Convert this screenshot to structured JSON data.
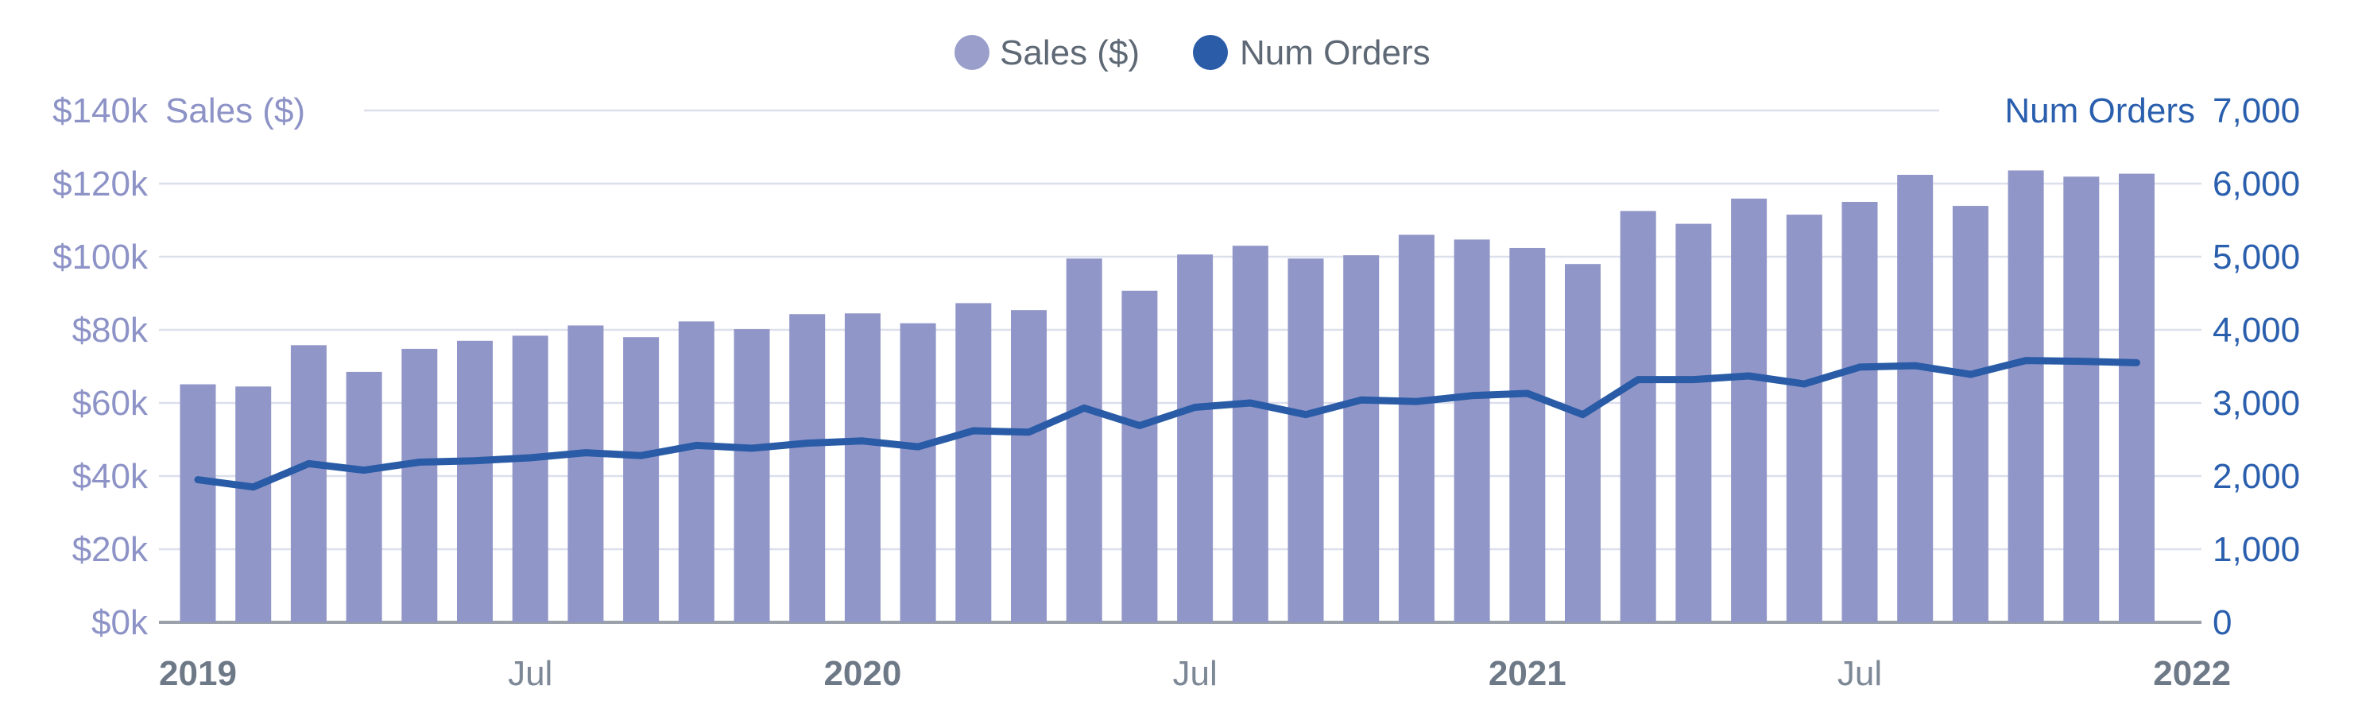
{
  "chart_data": {
    "type": "bar",
    "subtype": "combo-bar-line-dual-axis",
    "categories": [
      "Jan 2019",
      "Feb 2019",
      "Mar 2019",
      "Apr 2019",
      "May 2019",
      "Jun 2019",
      "Jul 2019",
      "Aug 2019",
      "Sep 2019",
      "Oct 2019",
      "Nov 2019",
      "Dec 2019",
      "Jan 2020",
      "Feb 2020",
      "Mar 2020",
      "Apr 2020",
      "May 2020",
      "Jun 2020",
      "Jul 2020",
      "Aug 2020",
      "Sep 2020",
      "Oct 2020",
      "Nov 2020",
      "Dec 2020",
      "Jan 2021",
      "Feb 2021",
      "Mar 2021",
      "Apr 2021",
      "May 2021",
      "Jun 2021",
      "Jul 2021",
      "Aug 2021",
      "Sep 2021",
      "Oct 2021",
      "Nov 2021",
      "Dec 2021"
    ],
    "series": [
      {
        "name": "Sales ($)",
        "type": "bar",
        "axis": "left",
        "color": "#9196c8",
        "values": [
          65100,
          64500,
          75800,
          68500,
          74800,
          77000,
          78400,
          81200,
          78000,
          82300,
          80200,
          84300,
          84500,
          81800,
          87300,
          85400,
          99500,
          90700,
          100600,
          103000,
          99500,
          100400,
          106000,
          104700,
          102400,
          98000,
          112500,
          109000,
          115900,
          111500,
          115000,
          122400,
          113900,
          123600,
          121900,
          122700
        ]
      },
      {
        "name": "Num Orders",
        "type": "line",
        "axis": "right",
        "color": "#2a5ba6",
        "values": [
          1950,
          1850,
          2170,
          2080,
          2190,
          2210,
          2250,
          2320,
          2280,
          2420,
          2380,
          2450,
          2480,
          2400,
          2620,
          2600,
          2930,
          2690,
          2940,
          3000,
          2840,
          3040,
          3020,
          3100,
          3130,
          2840,
          3320,
          3320,
          3370,
          3260,
          3490,
          3510,
          3390,
          3580,
          3570,
          3550
        ]
      }
    ],
    "left_axis": {
      "title": "Sales ($)",
      "range": [
        0,
        140000
      ],
      "tick_step": 20000,
      "tick_labels": [
        "$0k",
        "$20k",
        "$40k",
        "$60k",
        "$80k",
        "$100k",
        "$120k",
        "$140k"
      ]
    },
    "right_axis": {
      "title": "Num Orders",
      "range": [
        0,
        7000
      ],
      "tick_step": 1000,
      "tick_labels": [
        "0",
        "1,000",
        "2,000",
        "3,000",
        "4,000",
        "5,000",
        "6,000",
        "7,000"
      ]
    },
    "x_axis": {
      "ticks": [
        {
          "label": "2019",
          "month_index": 0,
          "bold": true
        },
        {
          "label": "Jul",
          "month_index": 6,
          "bold": false
        },
        {
          "label": "2020",
          "month_index": 12,
          "bold": true
        },
        {
          "label": "Jul",
          "month_index": 18,
          "bold": false
        },
        {
          "label": "2021",
          "month_index": 24,
          "bold": true
        },
        {
          "label": "Jul",
          "month_index": 30,
          "bold": false
        },
        {
          "label": "2022",
          "month_index": 36,
          "bold": true
        }
      ]
    },
    "grid": true,
    "legend_position": "top-center"
  },
  "legend": {
    "items": [
      {
        "label": "Sales ($)",
        "color": "#999ecb",
        "icon": "circle"
      },
      {
        "label": "Num Orders",
        "color": "#2b5ca8",
        "icon": "circle"
      }
    ]
  },
  "colors": {
    "background": "#ffffff",
    "bar_fill": "#9196c8",
    "line_stroke": "#2a5ba6",
    "gridline": "#dcdfec",
    "axis_line": "#9aa1ab",
    "left_axis_text": "#8d93c6",
    "right_axis_text": "#2a5fae",
    "legend_text": "#5e6975",
    "x_tick_year_text": "#6e7988",
    "x_tick_month_text": "#7d8896"
  }
}
